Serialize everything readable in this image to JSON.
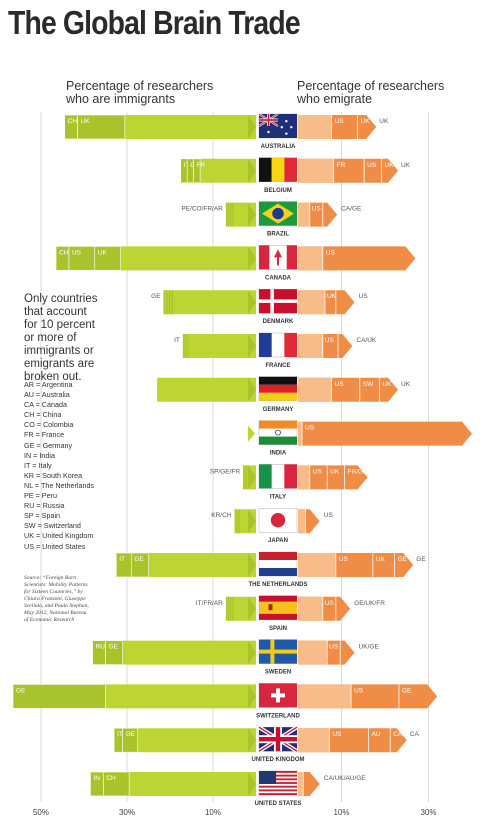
{
  "title": "The Global Brain Trade",
  "headers": {
    "left": [
      "Percentage of researchers",
      "who are immigrants"
    ],
    "right": [
      "Percentage of researchers",
      "who emigrate"
    ]
  },
  "note": [
    "Only countries",
    "that account",
    "for 10 percent",
    "or more of",
    "immigrants or",
    "emigrants are",
    "broken out."
  ],
  "abbreviations": [
    "AR = Argentina",
    "AU = Australia",
    "CA = Canada",
    "CH = China",
    "CO = Colombia",
    "FR = France",
    "GE = Germany",
    "IN = India",
    "IT = Italy",
    "KR = South Korea",
    "NL = The Netherlands",
    "PE = Peru",
    "RU = Russia",
    "SP = Spain",
    "SW = Switzerland",
    "UK = United Kingdom",
    "US = United States"
  ],
  "source": [
    "Source: “Foreign Born",
    "Scientists: Mobility Patterns",
    "for Sixteen Countries,” by",
    "Chiara Franzoni, Giuseppe",
    "Scellato, and Paula Stephan,",
    "May 2012, National Bureau",
    "of Economic Research"
  ],
  "colors": {
    "immigrant_base": "#bcd532",
    "immigrant_dark": "#a9c42a",
    "emigrant_light": "#f7bc8a",
    "emigrant_base": "#ef8c45",
    "grid": "#d9d9d9"
  },
  "chart_data": {
    "type": "bar",
    "xlabel_left": "Percentage of researchers who are immigrants",
    "xlabel_right": "Percentage of researchers who emigrate",
    "axis_ticks_left": [
      "50%",
      "30%",
      "10%"
    ],
    "axis_ticks_right": [
      "10%",
      "30%"
    ],
    "xlim_left": [
      0,
      57
    ],
    "xlim_right": [
      0,
      40
    ],
    "countries": [
      {
        "name": "AUSTRALIA",
        "immigrants": 44.5,
        "imm_segments": [
          {
            "label": "CH",
            "value": 3
          },
          {
            "label": "UK",
            "value": 11
          }
        ],
        "emigrants": 18,
        "emi_segments": [
          {
            "label": "US",
            "value": 6
          },
          {
            "label": "UK",
            "value": 2
          }
        ]
      },
      {
        "name": "BELGIUM",
        "immigrants": 17.5,
        "imm_segments": [
          {
            "label": "IT",
            "value": 1.5
          },
          {
            "label": "GE",
            "value": 1.5
          },
          {
            "label": "FR",
            "value": 1.5
          }
        ],
        "emigrants": 23,
        "emi_segments": [
          {
            "label": "FR",
            "value": 7
          },
          {
            "label": "US",
            "value": 4
          },
          {
            "label": "UK",
            "value": 1.5
          }
        ]
      },
      {
        "name": "BRAZIL",
        "immigrants": 7,
        "imm_segments": [
          {
            "label": "PE/CO/FR/AR",
            "value": 2
          }
        ],
        "emigrants": 9,
        "emi_segments": [
          {
            "label": "US",
            "value": 3
          },
          {
            "label": "CA/GE",
            "value": 1
          }
        ]
      },
      {
        "name": "CANADA",
        "immigrants": 46.5,
        "imm_segments": [
          {
            "label": "CH",
            "value": 3
          },
          {
            "label": "US",
            "value": 6
          },
          {
            "label": "UK",
            "value": 6
          }
        ],
        "emigrants": 27,
        "emi_segments": [
          {
            "label": "US",
            "value": 19
          }
        ]
      },
      {
        "name": "DENMARK",
        "immigrants": 21.5,
        "imm_segments": [
          {
            "label": "GE",
            "value": 2.5
          }
        ],
        "emigrants": 13,
        "emi_segments": [
          {
            "label": "UK",
            "value": 2.5
          },
          {
            "label": "US",
            "value": 2
          }
        ]
      },
      {
        "name": "FRANCE",
        "immigrants": 17,
        "imm_segments": [
          {
            "label": "IT",
            "value": 1.5
          }
        ],
        "emigrants": 12.5,
        "emi_segments": [
          {
            "label": "US",
            "value": 3.5
          },
          {
            "label": "CA/UK",
            "value": 1
          }
        ]
      },
      {
        "name": "GERMANY",
        "immigrants": 23,
        "imm_segments": [],
        "emigrants": 23,
        "emi_segments": [
          {
            "label": "US",
            "value": 6.5
          },
          {
            "label": "SW",
            "value": 4.5
          },
          {
            "label": "UK",
            "value": 2
          }
        ]
      },
      {
        "name": "INDIA",
        "immigrants": 0.8,
        "imm_segments": [],
        "emigrants": 40,
        "emi_segments": [
          {
            "label": "US",
            "value": 38
          }
        ]
      },
      {
        "name": "ITALY",
        "immigrants": 3,
        "imm_segments": [
          {
            "label": "SP/GE/FR",
            "value": 1.5
          }
        ],
        "emigrants": 16,
        "emi_segments": [
          {
            "label": "US",
            "value": 4
          },
          {
            "label": "UK",
            "value": 4
          },
          {
            "label": "FR/GE",
            "value": 3
          }
        ]
      },
      {
        "name": "JAPAN",
        "immigrants": 5,
        "imm_segments": [
          {
            "label": "KR/CH",
            "value": 1.5
          }
        ],
        "emigrants": 5,
        "emi_segments": [
          {
            "label": "US",
            "value": 1
          }
        ]
      },
      {
        "name": "THE NETHERLANDS",
        "immigrants": 32.5,
        "imm_segments": [
          {
            "label": "IT",
            "value": 3.5
          },
          {
            "label": "GE",
            "value": 4
          }
        ],
        "emigrants": 26.5,
        "emi_segments": [
          {
            "label": "US",
            "value": 8.5
          },
          {
            "label": "UK",
            "value": 5
          },
          {
            "label": "GE",
            "value": 2
          }
        ]
      },
      {
        "name": "SPAIN",
        "immigrants": 7,
        "imm_segments": [
          {
            "label": "IT/FR/AR",
            "value": 2
          }
        ],
        "emigrants": 12,
        "emi_segments": [
          {
            "label": "US",
            "value": 3
          },
          {
            "label": "GE/UK/FR",
            "value": 1
          }
        ]
      },
      {
        "name": "SWEDEN",
        "immigrants": 38,
        "imm_segments": [
          {
            "label": "RU",
            "value": 3
          },
          {
            "label": "GE",
            "value": 4
          }
        ],
        "emigrants": 13,
        "emi_segments": [
          {
            "label": "US",
            "value": 3
          },
          {
            "label": "UK/GE",
            "value": 1
          }
        ]
      },
      {
        "name": "SWITZERLAND",
        "immigrants": 56.5,
        "imm_segments": [
          {
            "label": "GE",
            "value": 21.5
          }
        ],
        "emigrants": 32,
        "emi_segments": [
          {
            "label": "US",
            "value": 11
          },
          {
            "label": "GE",
            "value": 6.5
          }
        ]
      },
      {
        "name": "UNITED KINGDOM",
        "immigrants": 33,
        "imm_segments": [
          {
            "label": "IT",
            "value": 2
          },
          {
            "label": "GE",
            "value": 3.5
          }
        ],
        "emigrants": 25,
        "emi_segments": [
          {
            "label": "US",
            "value": 9
          },
          {
            "label": "AU",
            "value": 5
          },
          {
            "label": "CA",
            "value": 1.5
          }
        ]
      },
      {
        "name": "UNITED STATES",
        "immigrants": 38.5,
        "imm_segments": [
          {
            "label": "IN",
            "value": 3
          },
          {
            "label": "CH",
            "value": 6
          }
        ],
        "emigrants": 5,
        "emi_segments": [
          {
            "label": "CA/UK/AU/GE",
            "value": 1.5
          }
        ]
      }
    ]
  }
}
